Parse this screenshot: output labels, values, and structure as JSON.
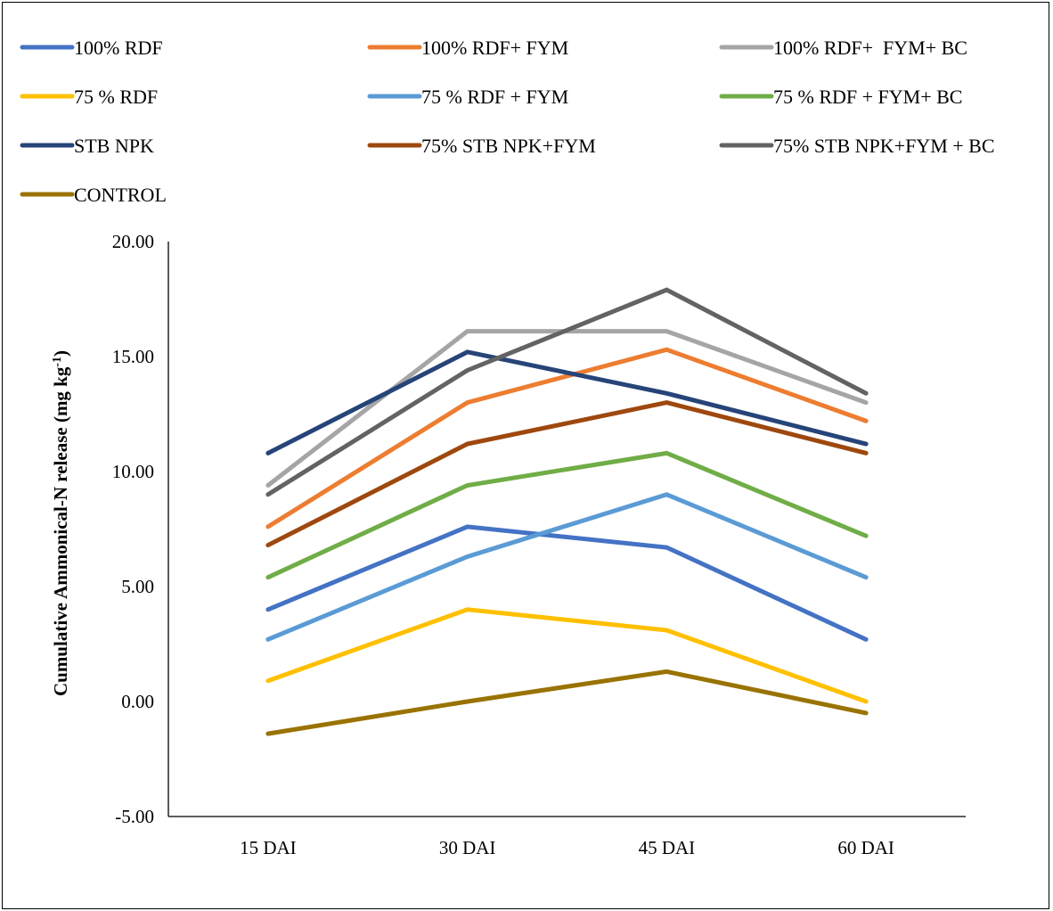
{
  "chart_data": {
    "type": "line",
    "title": "",
    "xlabel": "",
    "ylabel": "Cumulative Ammonical-N release (mg kg",
    "ylabel_superscript": "-1",
    "ylabel_suffix": ")",
    "ylim": [
      -5,
      20
    ],
    "yticks": [
      "20.00",
      "15.00",
      "10.00",
      "5.00",
      "0.00",
      "-5.00"
    ],
    "ytick_values": [
      20,
      15,
      10,
      5,
      0,
      -5
    ],
    "categories": [
      "15 DAI",
      "30 DAI",
      "45 DAI",
      "60 DAI"
    ],
    "legend_position": "top",
    "grid": false,
    "series": [
      {
        "name": "100% RDF",
        "color": "#4472C4",
        "values": [
          4.0,
          7.6,
          6.7,
          2.7
        ]
      },
      {
        "name": "100% RDF+ FYM",
        "color": "#ED7D31",
        "values": [
          7.6,
          13.0,
          15.3,
          12.2
        ]
      },
      {
        "name": "100% RDF+  FYM+ BC",
        "color": "#A5A5A5",
        "values": [
          9.4,
          16.1,
          16.1,
          13.0
        ]
      },
      {
        "name": "75 % RDF",
        "color": "#FFC000",
        "values": [
          0.9,
          4.0,
          3.1,
          0.0
        ]
      },
      {
        "name": "75 % RDF + FYM",
        "color": "#5B9BD5",
        "values": [
          2.7,
          6.3,
          9.0,
          5.4
        ]
      },
      {
        "name": "75 % RDF + FYM+ BC",
        "color": "#70AD47",
        "values": [
          5.4,
          9.4,
          10.8,
          7.2
        ]
      },
      {
        "name": "STB NPK",
        "color": "#264478",
        "values": [
          10.8,
          15.2,
          13.4,
          11.2
        ]
      },
      {
        "name": "75% STB NPK+FYM",
        "color": "#9E480E",
        "values": [
          6.8,
          11.2,
          13.0,
          10.8
        ]
      },
      {
        "name": "75% STB NPK+FYM + BC",
        "color": "#636363",
        "values": [
          9.0,
          14.4,
          17.9,
          13.4
        ]
      },
      {
        "name": "CONTROL",
        "color": "#997300",
        "values": [
          -1.4,
          0.0,
          1.3,
          -0.5
        ]
      }
    ]
  }
}
